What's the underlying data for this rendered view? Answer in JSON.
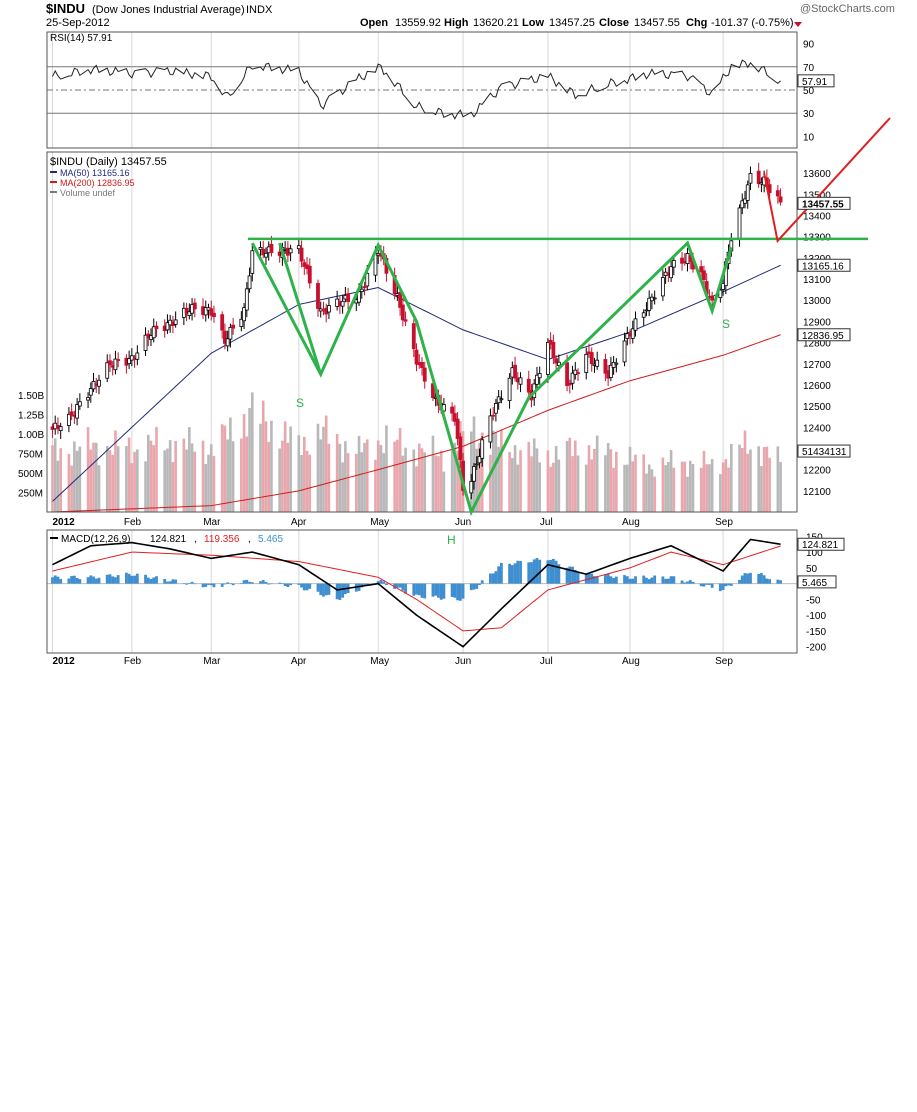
{
  "header": {
    "symbol": "$INDU",
    "name": "(Dow Jones Industrial Average)",
    "exchange": "INDX",
    "date": "25-Sep-2012",
    "watermark": "@StockCharts.com",
    "open_label": "Open",
    "open": "13559.92",
    "high_label": "High",
    "high": "13620.21",
    "low_label": "Low",
    "low": "13457.25",
    "close_label": "Close",
    "close": "13457.55",
    "chg_label": "Chg",
    "chg": "-101.37 (-0.75%)"
  },
  "colors": {
    "up": "#000000",
    "down": "#c8102e",
    "ma50": "#1f2a7a",
    "ma200": "#d01c1c",
    "volume_up": "#b8b8b8",
    "volume_down": "#e8a7ad",
    "annotation": "#2db34a",
    "arrow": "#e02020",
    "macd_hist": "#3f8fd0",
    "signal": "#e02020",
    "grid": "#d8d8d8"
  },
  "chart_data": [
    {
      "type": "line",
      "panel": "RSI",
      "legend": "RSI(14) 57.91",
      "ylim": [
        0,
        100
      ],
      "yticks": [
        10,
        30,
        50,
        70,
        90
      ],
      "reference_lines": [
        30,
        50,
        70
      ],
      "current_label": "57.91",
      "series": [
        {
          "x": [
            "2012-01-03",
            "2012-01-17",
            "2012-02-01",
            "2012-02-15",
            "2012-03-01",
            "2012-03-07",
            "2012-03-16",
            "2012-04-02",
            "2012-04-10",
            "2012-04-24",
            "2012-05-02",
            "2012-05-15",
            "2012-05-25",
            "2012-06-04",
            "2012-06-15",
            "2012-07-02",
            "2012-07-12",
            "2012-07-25",
            "2012-08-08",
            "2012-08-22",
            "2012-08-31",
            "2012-09-07",
            "2012-09-14",
            "2012-09-25"
          ],
          "values": [
            62,
            68,
            64,
            66,
            62,
            44,
            72,
            66,
            36,
            60,
            70,
            36,
            30,
            28,
            52,
            62,
            46,
            56,
            64,
            62,
            46,
            70,
            74,
            57.91
          ]
        }
      ]
    },
    {
      "type": "candlestick",
      "panel": "price",
      "title": "$INDU (Daily) 13457.55",
      "ylim": [
        12000,
        13700
      ],
      "yticks": [
        12100,
        12200,
        12300,
        12400,
        12500,
        12600,
        12700,
        12800,
        12900,
        13000,
        13100,
        13200,
        13300,
        13400,
        13500,
        13600
      ],
      "x_ticks": [
        "2012",
        "Feb",
        "Mar",
        "Apr",
        "May",
        "Jun",
        "Jul",
        "Aug",
        "Sep"
      ],
      "legend": [
        {
          "label": "MA(50) 13165.16",
          "color": "#1f2a7a"
        },
        {
          "label": "MA(200) 12836.95",
          "color": "#d01c1c"
        },
        {
          "label": "Volume undef",
          "color": "#777777"
        }
      ],
      "price_labels": {
        "close": "13457.55",
        "ma50": "13165.16",
        "ma200": "12836.95"
      },
      "close_path": {
        "x": [
          "2012-01-03",
          "2012-01-09",
          "2012-01-17",
          "2012-01-24",
          "2012-02-01",
          "2012-02-08",
          "2012-02-15",
          "2012-02-22",
          "2012-03-01",
          "2012-03-06",
          "2012-03-13",
          "2012-03-16",
          "2012-03-26",
          "2012-04-02",
          "2012-04-10",
          "2012-04-16",
          "2012-04-24",
          "2012-05-01",
          "2012-05-08",
          "2012-05-15",
          "2012-05-22",
          "2012-05-29",
          "2012-06-01",
          "2012-06-04",
          "2012-06-11",
          "2012-06-19",
          "2012-06-26",
          "2012-07-02",
          "2012-07-09",
          "2012-07-16",
          "2012-07-24",
          "2012-08-01",
          "2012-08-08",
          "2012-08-16",
          "2012-08-22",
          "2012-08-27",
          "2012-08-31",
          "2012-09-04",
          "2012-09-07",
          "2012-09-14",
          "2012-09-19",
          "2012-09-25"
        ],
        "values": [
          12390,
          12440,
          12580,
          12700,
          12720,
          12850,
          12890,
          12960,
          12950,
          12810,
          12950,
          13230,
          13230,
          13240,
          12940,
          12990,
          13020,
          13240,
          13010,
          12720,
          12520,
          12450,
          12120,
          12150,
          12450,
          12660,
          12550,
          12800,
          12600,
          12740,
          12650,
          12850,
          12990,
          13160,
          13200,
          13120,
          12980,
          13090,
          13300,
          13580,
          13560,
          13457.55
        ]
      },
      "ma50": {
        "x": [
          "2012-01-03",
          "2012-02-01",
          "2012-03-01",
          "2012-04-02",
          "2012-05-01",
          "2012-06-01",
          "2012-07-02",
          "2012-08-01",
          "2012-09-04",
          "2012-09-25"
        ],
        "values": [
          12050,
          12400,
          12750,
          12980,
          13060,
          12860,
          12720,
          12850,
          13040,
          13165.16
        ]
      },
      "ma200": {
        "x": [
          "2012-01-03",
          "2012-03-01",
          "2012-04-02",
          "2012-05-01",
          "2012-06-01",
          "2012-07-02",
          "2012-08-01",
          "2012-09-04",
          "2012-09-25"
        ],
        "values": [
          12000,
          12030,
          12100,
          12200,
          12310,
          12480,
          12620,
          12740,
          12836.95
        ]
      },
      "annotations": {
        "left_shoulder": "S",
        "head": "H",
        "right_shoulder": "S",
        "neckline": 13290
      }
    },
    {
      "type": "bar",
      "panel": "volume",
      "yticks": [
        "250M",
        "500M",
        "750M",
        "1.00B",
        "1.25B",
        "1.50B"
      ],
      "current_label": "51434131",
      "x": [
        "2012-01-03",
        "2012-01-17",
        "2012-02-01",
        "2012-02-15",
        "2012-03-01",
        "2012-03-16",
        "2012-04-02",
        "2012-04-10",
        "2012-04-24",
        "2012-05-02",
        "2012-05-15",
        "2012-05-25",
        "2012-06-04",
        "2012-06-15",
        "2012-07-02",
        "2012-07-12",
        "2012-07-25",
        "2012-08-08",
        "2012-08-22",
        "2012-08-31",
        "2012-09-07",
        "2012-09-14",
        "2012-09-25"
      ],
      "values": [
        0.9,
        1.0,
        0.95,
        1.05,
        0.95,
        1.5,
        1.0,
        1.2,
        0.9,
        1.1,
        0.95,
        0.85,
        1.25,
        1.0,
        0.85,
        0.95,
        0.9,
        0.7,
        0.75,
        0.7,
        0.85,
        1.05,
        0.75
      ]
    },
    {
      "type": "line",
      "panel": "MACD",
      "legend_macd": "MACD(12,26,9)",
      "legend_macd_value": "124.821",
      "legend_signal_value": "119.356",
      "legend_hist_value": "5.465",
      "ylim": [
        -220,
        170
      ],
      "yticks": [
        150,
        100,
        50,
        -50,
        -100,
        -150,
        -200
      ],
      "current_labels": {
        "macd": "124.821",
        "hist": "5.465"
      },
      "x_ticks": [
        "2012",
        "Feb",
        "Mar",
        "Apr",
        "May",
        "Jun",
        "Jul",
        "Aug",
        "Sep"
      ],
      "series": [
        {
          "name": "MACD",
          "x": [
            "2012-01-03",
            "2012-01-17",
            "2012-02-01",
            "2012-02-15",
            "2012-03-01",
            "2012-03-16",
            "2012-04-02",
            "2012-04-16",
            "2012-05-01",
            "2012-05-15",
            "2012-06-01",
            "2012-06-15",
            "2012-07-02",
            "2012-07-16",
            "2012-08-01",
            "2012-08-16",
            "2012-09-04",
            "2012-09-14",
            "2012-09-25"
          ],
          "values": [
            60,
            120,
            130,
            110,
            80,
            100,
            60,
            -20,
            0,
            -100,
            -200,
            -80,
            60,
            30,
            80,
            120,
            40,
            140,
            124.821
          ]
        },
        {
          "name": "Signal",
          "x": [
            "2012-01-03",
            "2012-02-01",
            "2012-03-01",
            "2012-04-02",
            "2012-05-01",
            "2012-05-15",
            "2012-06-01",
            "2012-06-15",
            "2012-07-02",
            "2012-08-01",
            "2012-08-16",
            "2012-09-04",
            "2012-09-25"
          ],
          "values": [
            40,
            100,
            90,
            70,
            20,
            -50,
            -150,
            -140,
            -20,
            50,
            100,
            60,
            119.356
          ]
        },
        {
          "name": "Histogram",
          "x": [
            "2012-01-03",
            "2012-01-17",
            "2012-02-01",
            "2012-03-01",
            "2012-03-16",
            "2012-04-02",
            "2012-04-16",
            "2012-05-01",
            "2012-05-15",
            "2012-06-01",
            "2012-06-15",
            "2012-07-02",
            "2012-07-16",
            "2012-08-01",
            "2012-08-16",
            "2012-09-04",
            "2012-09-14",
            "2012-09-25"
          ],
          "values": [
            20,
            20,
            30,
            -10,
            10,
            -10,
            -50,
            10,
            -40,
            -50,
            60,
            80,
            30,
            20,
            20,
            -20,
            40,
            5.465
          ]
        }
      ]
    }
  ]
}
